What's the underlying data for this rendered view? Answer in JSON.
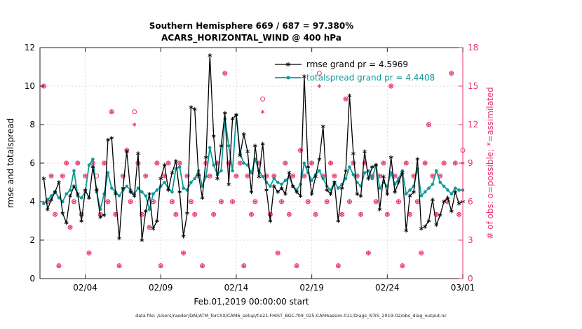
{
  "title_line1": "Southern Hemisphere 669 / 687 = 97.380%",
  "title_line2": "ACARS_HORIZONTAL_WIND @ 400 hPa",
  "xlabel": "Feb.01,2019 00:00:00 start",
  "ylabel_left": "rmse and totalspread",
  "ylabel_right": "# of obs: o=possible; *=assimilated",
  "caption": "data file: /Users/raeder/DAI/ATM_forcXX/CAM6_setup/f.e21.FHIST_BGC.f09_025.CAM6assim.011/Diags_NTrS_2019-02/obs_diag_output.nc",
  "colors": {
    "rmse": "#000000",
    "totalspread": "#0d9a9a",
    "obs": "#e8336d",
    "grid": "#d9d9d9",
    "axis": "#222222"
  },
  "legend": [
    {
      "label": "rmse grand pr = 4.5969",
      "color": "#000000",
      "marker": "asterisk"
    },
    {
      "label": "totalspread grand pr = 4.4408",
      "color": "#0d9a9a",
      "marker": "dot"
    }
  ],
  "chart_data": {
    "type": "line",
    "t_start_days": 0.25,
    "t_step_days": 0.25,
    "axes": {
      "x": {
        "min": 0,
        "max": 28,
        "tick_days": [
          3,
          8,
          13,
          18,
          23,
          28
        ],
        "tick_labels": [
          "02/04",
          "02/09",
          "02/14",
          "02/19",
          "02/24",
          "03/01"
        ]
      },
      "y_left": {
        "min": 0,
        "max": 12,
        "ticks": [
          0,
          2,
          4,
          6,
          8,
          10,
          12
        ]
      },
      "y_right": {
        "min": 0,
        "max": 18,
        "ticks": [
          0,
          3,
          6,
          9,
          12,
          15,
          18
        ]
      }
    },
    "series": [
      {
        "name": "rmse",
        "axis": "left",
        "marker": "asterisk",
        "color": "#000000",
        "values": [
          5.2,
          3.6,
          4.1,
          4.5,
          5.0,
          3.4,
          2.9,
          4.3,
          4.8,
          4.4,
          3.0,
          4.6,
          4.2,
          5.8,
          4.6,
          3.2,
          3.3,
          7.2,
          7.3,
          4.4,
          2.1,
          4.7,
          6.6,
          4.5,
          4.3,
          6.5,
          2.0,
          3.5,
          4.4,
          2.6,
          3.0,
          5.2,
          5.9,
          4.6,
          5.5,
          6.1,
          4.5,
          2.2,
          3.4,
          8.9,
          8.8,
          5.4,
          4.2,
          6.3,
          11.6,
          7.4,
          5.2,
          6.9,
          8.6,
          4.9,
          8.3,
          8.5,
          6.4,
          7.5,
          6.6,
          4.5,
          6.9,
          5.3,
          7.0,
          4.6,
          3.0,
          4.8,
          4.5,
          4.7,
          4.4,
          5.5,
          4.8,
          4.5,
          4.3,
          10.5,
          5.8,
          4.4,
          5.3,
          6.2,
          7.9,
          4.6,
          4.4,
          5.0,
          3.0,
          4.7,
          5.6,
          9.5,
          6.5,
          4.4,
          4.3,
          6.6,
          5.2,
          5.8,
          5.9,
          3.6,
          5.3,
          4.4,
          6.3,
          4.5,
          5.0,
          5.5,
          2.5,
          4.3,
          4.5,
          6.2,
          2.6,
          2.7,
          3.0,
          4.1,
          2.8,
          3.3,
          4.0,
          4.2,
          3.5,
          4.5,
          3.9,
          4.0
        ]
      },
      {
        "name": "totalspread",
        "axis": "left",
        "marker": "dot",
        "color": "#0d9a9a",
        "values": [
          3.9,
          4.1,
          4.3,
          4.5,
          4.2,
          4.0,
          4.4,
          4.6,
          5.6,
          4.3,
          4.2,
          4.5,
          5.9,
          6.2,
          4.5,
          3.6,
          4.4,
          5.5,
          4.7,
          4.5,
          4.3,
          4.6,
          4.8,
          4.6,
          4.4,
          4.7,
          4.5,
          4.3,
          3.6,
          4.4,
          4.6,
          4.8,
          5.0,
          4.7,
          4.5,
          5.7,
          5.8,
          4.7,
          4.6,
          5.0,
          5.2,
          5.6,
          4.8,
          5.3,
          6.8,
          5.9,
          5.4,
          5.6,
          8.3,
          6.9,
          5.6,
          8.5,
          6.5,
          6.0,
          5.9,
          5.5,
          6.2,
          5.6,
          5.3,
          5.0,
          4.8,
          5.2,
          5.0,
          4.9,
          5.1,
          5.3,
          4.8,
          4.6,
          4.9,
          6.0,
          5.5,
          5.1,
          5.4,
          5.6,
          5.2,
          4.8,
          4.6,
          5.0,
          4.7,
          4.9,
          5.2,
          5.8,
          5.4,
          5.0,
          4.8,
          5.5,
          5.6,
          5.2,
          5.9,
          4.7,
          5.0,
          4.8,
          5.5,
          4.9,
          5.2,
          5.6,
          4.4,
          4.6,
          4.8,
          5.7,
          4.3,
          4.5,
          4.7,
          4.9,
          5.6,
          5.0,
          4.8,
          4.6,
          4.4,
          4.7,
          4.6,
          4.6
        ]
      }
    ],
    "scatter": [
      {
        "name": "possible",
        "axis": "right",
        "marker": "circle",
        "color": "#e8336d",
        "values": [
          15,
          6,
          8,
          5,
          1,
          8,
          9,
          4,
          6,
          9,
          5,
          8,
          2,
          9,
          8,
          5,
          9,
          6,
          13,
          5,
          1,
          8,
          10,
          6,
          13,
          9,
          5,
          8,
          4,
          6,
          9,
          1,
          8,
          9,
          6,
          5,
          9,
          2,
          8,
          6,
          5,
          8,
          1,
          9,
          8,
          5,
          9,
          6,
          16,
          9,
          6,
          8,
          9,
          1,
          8,
          5,
          6,
          9,
          14,
          8,
          5,
          8,
          2,
          6,
          9,
          5,
          8,
          1,
          10,
          8,
          6,
          9,
          5,
          16,
          8,
          6,
          9,
          8,
          1,
          5,
          14,
          6,
          9,
          8,
          5,
          9,
          2,
          8,
          6,
          8,
          9,
          5,
          15,
          8,
          6,
          1,
          9,
          5,
          8,
          6,
          2,
          9,
          12,
          8,
          5,
          8,
          9,
          6,
          16,
          9,
          5,
          10
        ]
      },
      {
        "name": "assimilated",
        "axis": "right",
        "marker": "asterisk",
        "color": "#e8336d",
        "values": [
          15,
          6,
          8,
          5,
          1,
          8,
          9,
          4,
          6,
          9,
          5,
          8,
          2,
          9,
          7,
          5,
          9,
          6,
          13,
          5,
          1,
          8,
          10,
          6,
          12,
          9,
          5,
          8,
          4,
          6,
          9,
          1,
          8,
          9,
          6,
          5,
          9,
          2,
          8,
          6,
          5,
          8,
          1,
          9,
          8,
          5,
          9,
          6,
          16,
          9,
          6,
          8,
          9,
          1,
          8,
          5,
          6,
          9,
          13,
          8,
          5,
          8,
          2,
          6,
          9,
          5,
          8,
          1,
          10,
          8,
          6,
          9,
          5,
          15,
          8,
          6,
          9,
          8,
          1,
          5,
          14,
          6,
          9,
          8,
          5,
          9,
          2,
          8,
          6,
          8,
          9,
          5,
          15,
          8,
          6,
          1,
          9,
          5,
          8,
          6,
          2,
          9,
          12,
          8,
          5,
          8,
          9,
          6,
          16,
          9,
          5,
          9
        ]
      }
    ]
  }
}
